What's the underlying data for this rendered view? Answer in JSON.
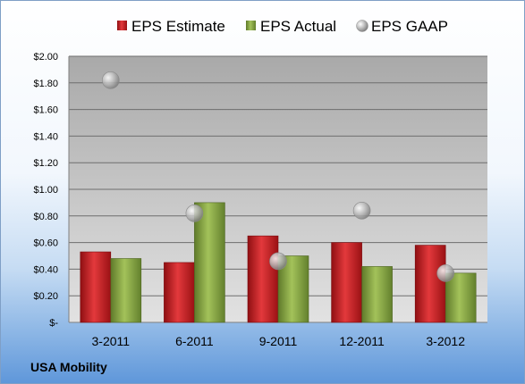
{
  "company": "USA Mobility",
  "colors": {
    "estimate": "#c0171b",
    "actual": "#7f9f3c",
    "gaap": "#b8b8b8",
    "plot_background": "#c8c8c8"
  },
  "chart_data": {
    "type": "bar",
    "categories": [
      "3-2011",
      "6-2011",
      "9-2011",
      "12-2011",
      "3-2012"
    ],
    "series": [
      {
        "name": "EPS Estimate",
        "type": "bar",
        "values": [
          0.53,
          0.45,
          0.65,
          0.6,
          0.58
        ]
      },
      {
        "name": "EPS Actual",
        "type": "bar",
        "values": [
          0.48,
          0.9,
          0.5,
          0.42,
          0.37
        ]
      },
      {
        "name": "EPS GAAP",
        "type": "scatter",
        "values": [
          1.82,
          0.82,
          0.46,
          0.84,
          0.37
        ]
      }
    ],
    "ylim": [
      0,
      2.0
    ],
    "yticks": [
      {
        "value": 2.0,
        "label": "$2.00"
      },
      {
        "value": 1.8,
        "label": "$1.80"
      },
      {
        "value": 1.6,
        "label": "$1.60"
      },
      {
        "value": 1.4,
        "label": "$1.40"
      },
      {
        "value": 1.2,
        "label": "$1.20"
      },
      {
        "value": 1.0,
        "label": "$1.00"
      },
      {
        "value": 0.8,
        "label": "$0.80"
      },
      {
        "value": 0.6,
        "label": "$0.60"
      },
      {
        "value": 0.4,
        "label": "$0.40"
      },
      {
        "value": 0.2,
        "label": "$0.20"
      },
      {
        "value": 0.0,
        "label": "$-"
      }
    ],
    "grid": true,
    "legend_position": "top"
  }
}
